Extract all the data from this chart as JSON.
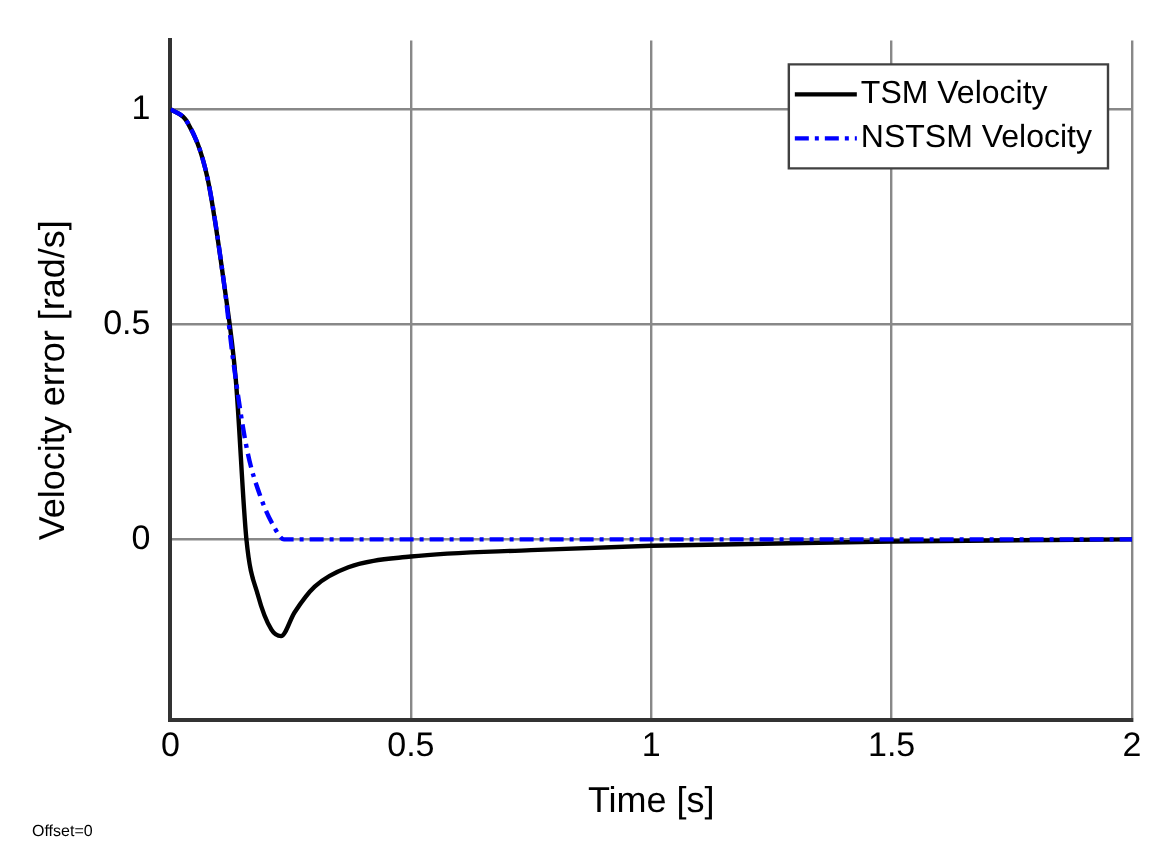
{
  "chart_data": {
    "type": "line",
    "xlabel": "Time [s]",
    "ylabel": "Velocity error [rad/s]",
    "annotations": [
      "Offset=0"
    ],
    "xlim": [
      0,
      2
    ],
    "ylim": [
      -0.42,
      1.16
    ],
    "xticks": [
      0,
      0.5,
      1,
      1.5,
      2
    ],
    "yticks": [
      0,
      0.5,
      1
    ],
    "grid": true,
    "legend": "top right",
    "marker": "none",
    "series": [
      {
        "name": "TSM Velocity",
        "color": "#000000",
        "line_style": "solid",
        "x": [
          0,
          0.035,
          0.077,
          0.112,
          0.136,
          0.158,
          0.182,
          0.21,
          0.23,
          0.258,
          0.3,
          0.37,
          0.5,
          0.75,
          1,
          1.5,
          2
        ],
        "values": [
          1,
          0.97,
          0.84,
          0.59,
          0.37,
          0,
          -0.13,
          -0.21,
          -0.225,
          -0.17,
          -0.11,
          -0.065,
          -0.04,
          -0.025,
          -0.015,
          -0.005,
          0
        ]
      },
      {
        "name": "NSTSM Velocity",
        "color": "#0000ff",
        "line_style": "dashed",
        "x": [
          0,
          0.035,
          0.077,
          0.112,
          0.13,
          0.159,
          0.187,
          0.215,
          0.236,
          0.5,
          1,
          1.5,
          2
        ],
        "values": [
          1,
          0.97,
          0.84,
          0.59,
          0.42,
          0.21,
          0.1,
          0.03,
          0,
          0,
          0,
          0,
          0
        ]
      }
    ]
  }
}
